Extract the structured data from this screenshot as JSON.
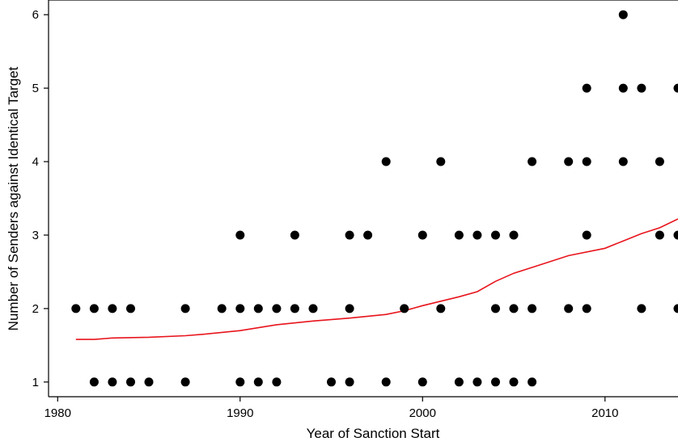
{
  "chart_data": {
    "type": "scatter",
    "title": "",
    "xlabel": "Year of Sanction Start",
    "ylabel": "Number of Senders against Identical Target",
    "xlim": [
      1979.5,
      2014
    ],
    "ylim": [
      0.8,
      6.2
    ],
    "xticks": [
      1980,
      1990,
      2000,
      2010
    ],
    "yticks": [
      1,
      2,
      3,
      4,
      5,
      6
    ],
    "grid": false,
    "legend": "none",
    "colors": {
      "points": "#000000",
      "fit_line": "#e8141c",
      "axis": "#000000"
    },
    "points": [
      {
        "x": 1981,
        "y": 2
      },
      {
        "x": 1982,
        "y": 2
      },
      {
        "x": 1982,
        "y": 1
      },
      {
        "x": 1983,
        "y": 2
      },
      {
        "x": 1983,
        "y": 1
      },
      {
        "x": 1984,
        "y": 2
      },
      {
        "x": 1984,
        "y": 1
      },
      {
        "x": 1985,
        "y": 1
      },
      {
        "x": 1987,
        "y": 2
      },
      {
        "x": 1987,
        "y": 1
      },
      {
        "x": 1989,
        "y": 2
      },
      {
        "x": 1990,
        "y": 3
      },
      {
        "x": 1990,
        "y": 2
      },
      {
        "x": 1990,
        "y": 1
      },
      {
        "x": 1991,
        "y": 2
      },
      {
        "x": 1991,
        "y": 1
      },
      {
        "x": 1992,
        "y": 2
      },
      {
        "x": 1992,
        "y": 1
      },
      {
        "x": 1993,
        "y": 3
      },
      {
        "x": 1993,
        "y": 2
      },
      {
        "x": 1994,
        "y": 2
      },
      {
        "x": 1995,
        "y": 1
      },
      {
        "x": 1996,
        "y": 3
      },
      {
        "x": 1996,
        "y": 2
      },
      {
        "x": 1996,
        "y": 1
      },
      {
        "x": 1997,
        "y": 3
      },
      {
        "x": 1998,
        "y": 4
      },
      {
        "x": 1998,
        "y": 1
      },
      {
        "x": 1999,
        "y": 2
      },
      {
        "x": 2000,
        "y": 3
      },
      {
        "x": 2000,
        "y": 1
      },
      {
        "x": 2001,
        "y": 4
      },
      {
        "x": 2001,
        "y": 2
      },
      {
        "x": 2002,
        "y": 3
      },
      {
        "x": 2002,
        "y": 1
      },
      {
        "x": 2003,
        "y": 3
      },
      {
        "x": 2003,
        "y": 1
      },
      {
        "x": 2004,
        "y": 3
      },
      {
        "x": 2004,
        "y": 2
      },
      {
        "x": 2004,
        "y": 1
      },
      {
        "x": 2005,
        "y": 3
      },
      {
        "x": 2005,
        "y": 2
      },
      {
        "x": 2005,
        "y": 1
      },
      {
        "x": 2006,
        "y": 4
      },
      {
        "x": 2006,
        "y": 2
      },
      {
        "x": 2006,
        "y": 1
      },
      {
        "x": 2008,
        "y": 4
      },
      {
        "x": 2008,
        "y": 2
      },
      {
        "x": 2009,
        "y": 5
      },
      {
        "x": 2009,
        "y": 4
      },
      {
        "x": 2009,
        "y": 3
      },
      {
        "x": 2009,
        "y": 2
      },
      {
        "x": 2011,
        "y": 6
      },
      {
        "x": 2011,
        "y": 5
      },
      {
        "x": 2011,
        "y": 4
      },
      {
        "x": 2012,
        "y": 5
      },
      {
        "x": 2012,
        "y": 2
      },
      {
        "x": 2013,
        "y": 4
      },
      {
        "x": 2013,
        "y": 3
      },
      {
        "x": 2014,
        "y": 5
      },
      {
        "x": 2014,
        "y": 3
      },
      {
        "x": 2014,
        "y": 2
      }
    ],
    "fit_line": [
      {
        "x": 1981,
        "y": 1.58
      },
      {
        "x": 1982,
        "y": 1.58
      },
      {
        "x": 1983,
        "y": 1.6
      },
      {
        "x": 1985,
        "y": 1.61
      },
      {
        "x": 1987,
        "y": 1.63
      },
      {
        "x": 1988,
        "y": 1.65
      },
      {
        "x": 1990,
        "y": 1.7
      },
      {
        "x": 1992,
        "y": 1.78
      },
      {
        "x": 1994,
        "y": 1.83
      },
      {
        "x": 1996,
        "y": 1.87
      },
      {
        "x": 1998,
        "y": 1.92
      },
      {
        "x": 1999,
        "y": 1.97
      },
      {
        "x": 2000,
        "y": 2.04
      },
      {
        "x": 2001,
        "y": 2.1
      },
      {
        "x": 2002,
        "y": 2.16
      },
      {
        "x": 2003,
        "y": 2.23
      },
      {
        "x": 2004,
        "y": 2.37
      },
      {
        "x": 2005,
        "y": 2.48
      },
      {
        "x": 2006,
        "y": 2.56
      },
      {
        "x": 2008,
        "y": 2.72
      },
      {
        "x": 2010,
        "y": 2.82
      },
      {
        "x": 2011,
        "y": 2.92
      },
      {
        "x": 2012,
        "y": 3.02
      },
      {
        "x": 2013,
        "y": 3.1
      },
      {
        "x": 2014,
        "y": 3.22
      }
    ]
  }
}
